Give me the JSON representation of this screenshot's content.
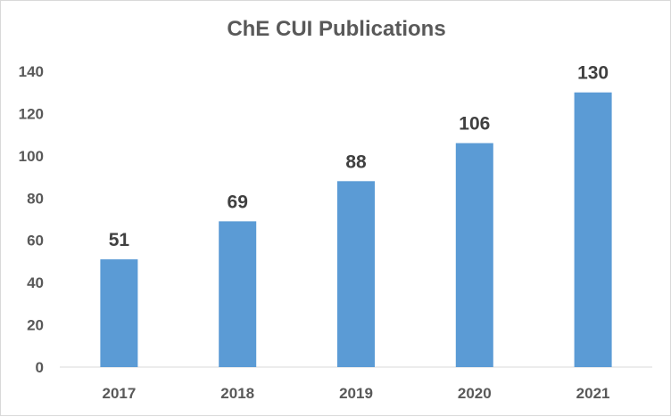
{
  "chart_data": {
    "type": "bar",
    "title": "ChE CUI Publications",
    "categories": [
      "2017",
      "2018",
      "2019",
      "2020",
      "2021"
    ],
    "values": [
      51,
      69,
      88,
      106,
      130
    ],
    "data_labels": [
      "51",
      "69",
      "88",
      "106",
      "130"
    ],
    "y_ticks": [
      "0",
      "20",
      "40",
      "60",
      "80",
      "100",
      "120",
      "140"
    ],
    "ylim": [
      0,
      140
    ],
    "grid": false,
    "legend": "none",
    "bar_color": "#5b9bd5",
    "xlabel": "",
    "ylabel": ""
  }
}
